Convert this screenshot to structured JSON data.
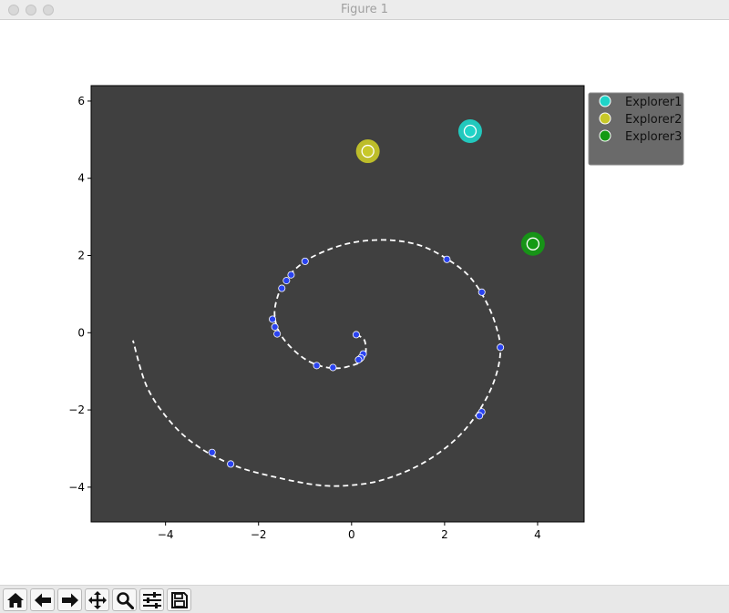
{
  "window": {
    "title": "Figure 1"
  },
  "toolbar": {
    "buttons": [
      {
        "name": "home-button",
        "icon": "home-icon"
      },
      {
        "name": "back-button",
        "icon": "arrow-left-icon"
      },
      {
        "name": "forward-button",
        "icon": "arrow-right-icon"
      },
      {
        "name": "pan-button",
        "icon": "move-icon"
      },
      {
        "name": "zoom-button",
        "icon": "magnifier-icon"
      },
      {
        "name": "configure-subplots-button",
        "icon": "sliders-icon"
      },
      {
        "name": "save-button",
        "icon": "floppy-disk-icon"
      }
    ]
  },
  "chart_data": {
    "type": "scatter",
    "title": "",
    "xlabel": "",
    "ylabel": "",
    "xlim": [
      -5.6,
      5.0
    ],
    "ylim": [
      -4.9,
      6.4
    ],
    "xticks": [
      -4,
      -2,
      0,
      2,
      4
    ],
    "yticks": [
      -4,
      -2,
      0,
      2,
      4,
      6
    ],
    "background": "#404040",
    "grid": false,
    "legend": {
      "placement": "outside upper right",
      "entries": [
        "Explorer1",
        "Explorer2",
        "Explorer3"
      ]
    },
    "path": {
      "style": "dashed",
      "color": "#ffffff",
      "points": [
        [
          0.1,
          -0.05
        ],
        [
          0.25,
          -0.15
        ],
        [
          0.3,
          -0.3
        ],
        [
          0.3,
          -0.55
        ],
        [
          0.2,
          -0.75
        ],
        [
          0.0,
          -0.85
        ],
        [
          -0.3,
          -0.92
        ],
        [
          -0.7,
          -0.85
        ],
        [
          -1.1,
          -0.6
        ],
        [
          -1.5,
          -0.1
        ],
        [
          -1.65,
          0.4
        ],
        [
          -1.6,
          0.9
        ],
        [
          -1.4,
          1.4
        ],
        [
          -1.0,
          1.85
        ],
        [
          -0.5,
          2.15
        ],
        [
          0.0,
          2.33
        ],
        [
          0.5,
          2.4
        ],
        [
          1.0,
          2.38
        ],
        [
          1.5,
          2.25
        ],
        [
          2.0,
          1.95
        ],
        [
          2.5,
          1.5
        ],
        [
          2.85,
          0.9
        ],
        [
          3.1,
          0.2
        ],
        [
          3.2,
          -0.5
        ],
        [
          3.05,
          -1.3
        ],
        [
          2.7,
          -2.1
        ],
        [
          2.2,
          -2.8
        ],
        [
          1.5,
          -3.4
        ],
        [
          0.7,
          -3.8
        ],
        [
          0.0,
          -3.95
        ],
        [
          -0.7,
          -3.95
        ],
        [
          -1.6,
          -3.75
        ],
        [
          -2.5,
          -3.45
        ],
        [
          -3.3,
          -2.95
        ],
        [
          -3.9,
          -2.3
        ],
        [
          -4.4,
          -1.4
        ],
        [
          -4.7,
          -0.2
        ]
      ]
    },
    "series": [
      {
        "name": "",
        "marker": "circle",
        "color": "#2a43f0",
        "points": [
          [
            0.1,
            -0.05
          ],
          [
            0.25,
            -0.55
          ],
          [
            0.2,
            -0.65
          ],
          [
            0.15,
            -0.7
          ],
          [
            -0.4,
            -0.9
          ],
          [
            -0.75,
            -0.85
          ],
          [
            -1.6,
            -0.03
          ],
          [
            -1.65,
            0.15
          ],
          [
            -1.7,
            0.35
          ],
          [
            -1.5,
            1.15
          ],
          [
            -1.4,
            1.35
          ],
          [
            -1.3,
            1.5
          ],
          [
            -1.0,
            1.85
          ],
          [
            2.05,
            1.9
          ],
          [
            2.8,
            1.05
          ],
          [
            3.2,
            -0.38
          ],
          [
            2.8,
            -2.05
          ],
          [
            2.75,
            -2.15
          ],
          [
            -2.6,
            -3.4
          ],
          [
            -3.0,
            -3.1
          ]
        ]
      },
      {
        "name": "Explorer1",
        "marker": "circle",
        "color": "#1fd4c8",
        "points": [
          [
            2.55,
            5.22
          ]
        ]
      },
      {
        "name": "Explorer2",
        "marker": "circle",
        "color": "#c8c828",
        "points": [
          [
            0.35,
            4.7
          ]
        ]
      },
      {
        "name": "Explorer3",
        "marker": "circle",
        "color": "#139a13",
        "points": [
          [
            3.9,
            2.3
          ]
        ]
      }
    ]
  }
}
